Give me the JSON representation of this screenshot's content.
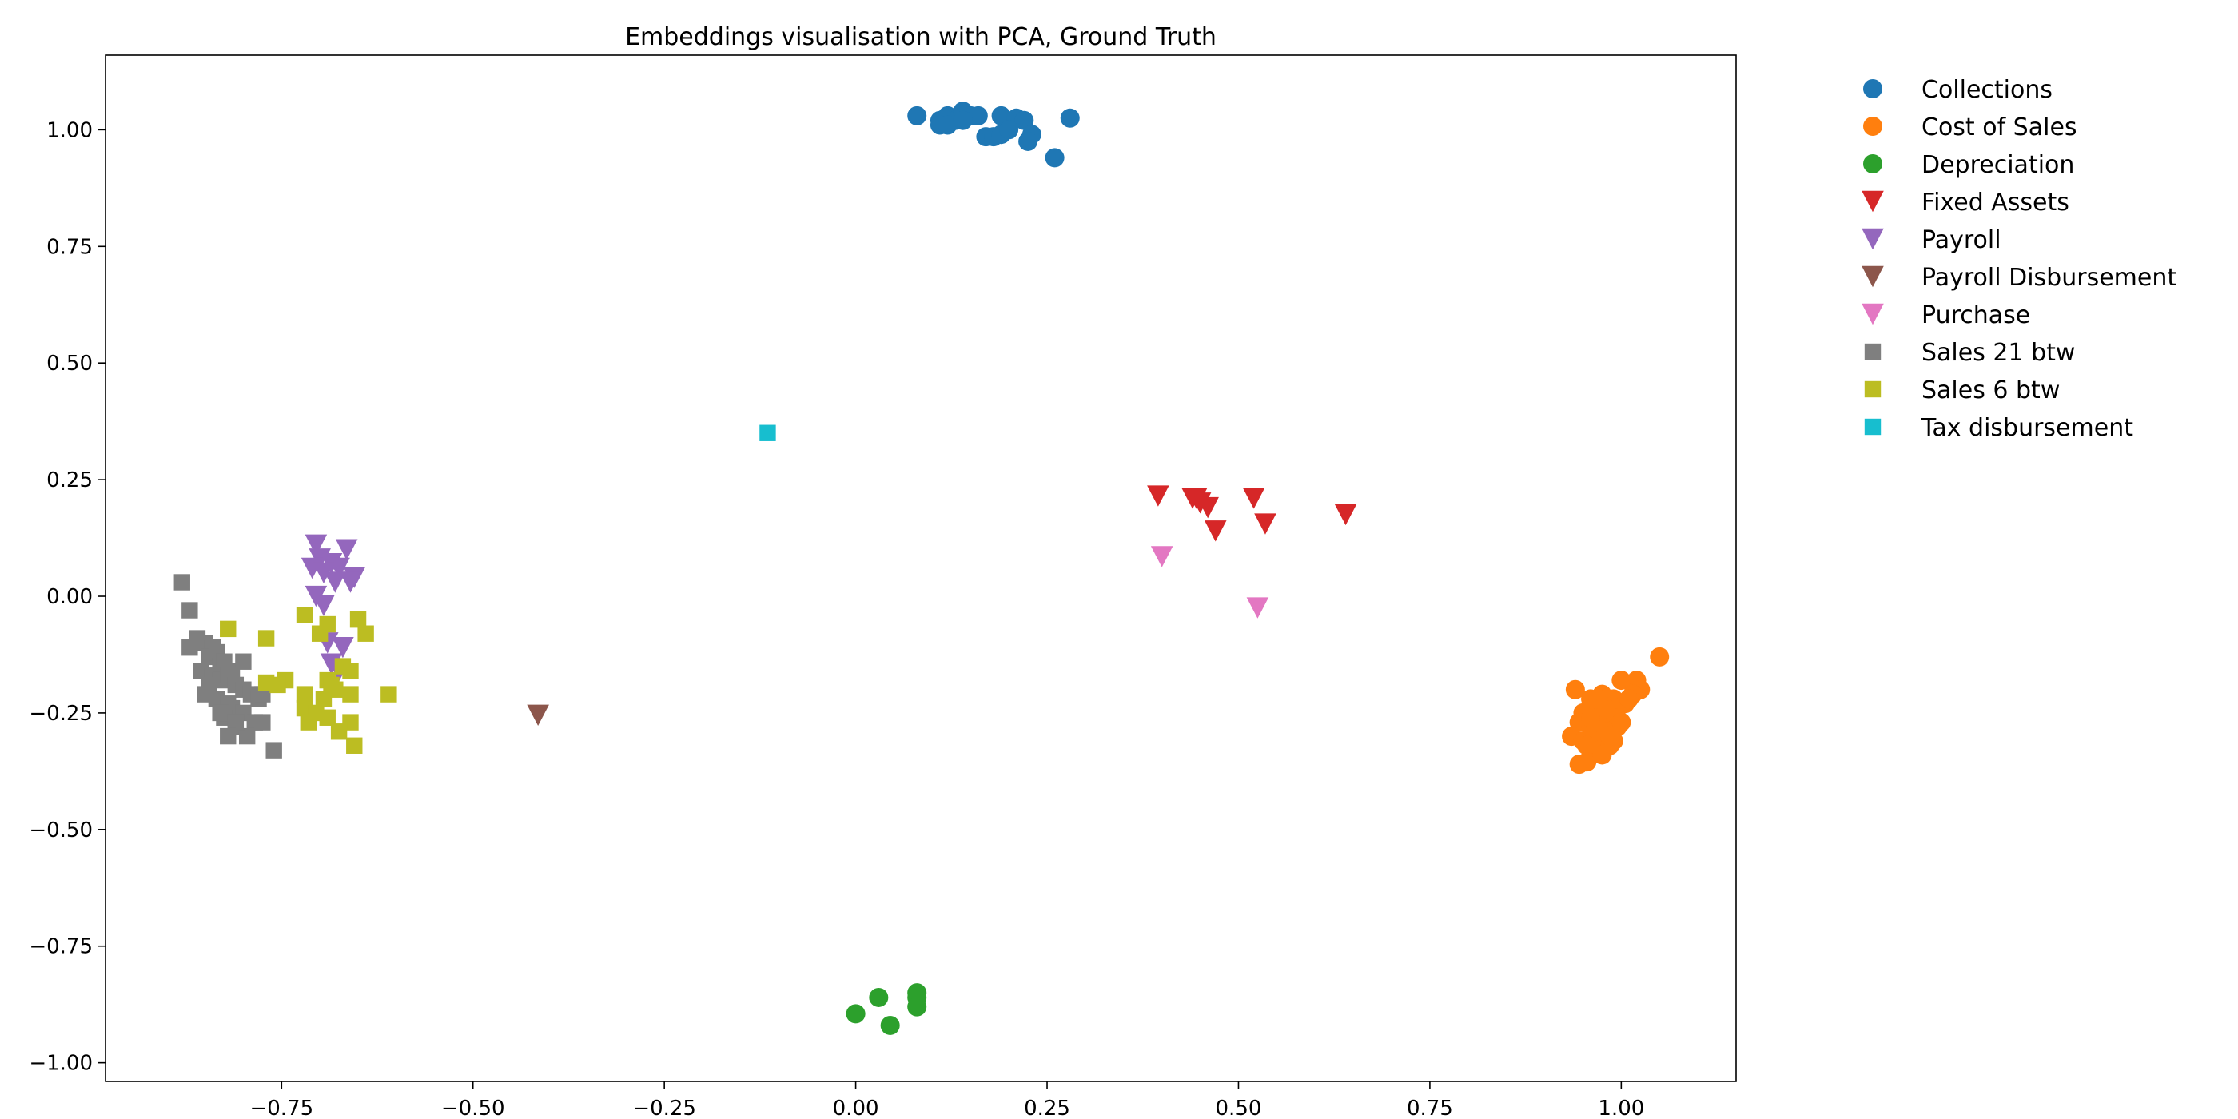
{
  "chart_data": {
    "type": "scatter",
    "title": "Embeddings visualisation with PCA, Ground Truth",
    "xlabel": "",
    "ylabel": "",
    "xlim": [
      -0.98,
      1.15
    ],
    "ylim": [
      -1.04,
      1.16
    ],
    "xticks": [
      -0.75,
      -0.5,
      -0.25,
      0.0,
      0.25,
      0.5,
      0.75,
      1.0
    ],
    "xtick_labels": [
      "−0.75",
      "−0.50",
      "−0.25",
      "0.00",
      "0.25",
      "0.50",
      "0.75",
      "1.00"
    ],
    "yticks": [
      1.0,
      0.75,
      0.5,
      0.25,
      0.0,
      -0.25,
      -0.5,
      -0.75,
      -1.0
    ],
    "ytick_labels": [
      "1.00",
      "0.75",
      "0.50",
      "0.25",
      "0.00",
      "−0.25",
      "−0.50",
      "−0.75",
      "−1.00"
    ],
    "grid": false,
    "legend_position": "outside-right",
    "series": [
      {
        "name": "Collections",
        "marker": "circle",
        "color": "#1f77b4",
        "x": [
          0.08,
          0.11,
          0.12,
          0.13,
          0.14,
          0.15,
          0.16,
          0.19,
          0.21,
          0.22,
          0.11,
          0.12,
          0.14,
          0.17,
          0.18,
          0.19,
          0.2,
          0.23,
          0.225,
          0.26,
          0.28
        ],
        "y": [
          1.03,
          1.02,
          1.03,
          1.02,
          1.04,
          1.03,
          1.03,
          1.03,
          1.025,
          1.02,
          1.01,
          1.01,
          1.02,
          0.985,
          0.985,
          0.99,
          1.0,
          0.99,
          0.975,
          0.94,
          1.025
        ]
      },
      {
        "name": "Cost of Sales",
        "marker": "circle",
        "color": "#ff7f0e",
        "x": [
          1.05,
          1.02,
          1.0,
          1.025,
          1.015,
          0.94,
          0.96,
          0.975,
          0.99,
          1.005,
          0.95,
          0.965,
          0.98,
          0.995,
          1.01,
          0.945,
          0.96,
          0.975,
          0.99,
          0.935,
          0.95,
          0.965,
          0.98,
          0.995,
          0.97,
          0.985,
          0.955,
          0.945,
          0.955,
          0.975,
          0.99,
          1.0,
          0.98,
          0.97,
          0.96,
          0.985
        ],
        "y": [
          -0.13,
          -0.18,
          -0.18,
          -0.2,
          -0.21,
          -0.2,
          -0.22,
          -0.21,
          -0.22,
          -0.23,
          -0.25,
          -0.24,
          -0.25,
          -0.24,
          -0.22,
          -0.27,
          -0.28,
          -0.27,
          -0.26,
          -0.3,
          -0.31,
          -0.3,
          -0.29,
          -0.28,
          -0.33,
          -0.32,
          -0.32,
          -0.36,
          -0.355,
          -0.34,
          -0.31,
          -0.27,
          -0.24,
          -0.22,
          -0.26,
          -0.3
        ]
      },
      {
        "name": "Depreciation",
        "marker": "circle",
        "color": "#2ca02c",
        "x": [
          0.08,
          0.08,
          0.03,
          0.0,
          0.045,
          0.08
        ],
        "y": [
          -0.85,
          -0.86,
          -0.86,
          -0.895,
          -0.92,
          -0.88
        ]
      },
      {
        "name": "Fixed Assets",
        "marker": "triangle-down",
        "color": "#d62728",
        "x": [
          0.395,
          0.44,
          0.45,
          0.46,
          0.47,
          0.52,
          0.535,
          0.64,
          0.445
        ],
        "y": [
          0.215,
          0.21,
          0.2,
          0.19,
          0.14,
          0.21,
          0.155,
          0.175,
          0.21
        ]
      },
      {
        "name": "Payroll",
        "marker": "triangle-down",
        "color": "#9467bd",
        "x": [
          -0.705,
          -0.665,
          -0.7,
          -0.71,
          -0.685,
          -0.675,
          -0.695,
          -0.655,
          -0.66,
          -0.68,
          -0.705,
          -0.695,
          -0.69,
          -0.67,
          -0.685,
          -0.675
        ],
        "y": [
          0.11,
          0.1,
          0.08,
          0.06,
          0.07,
          0.06,
          0.05,
          0.04,
          0.03,
          0.03,
          0.0,
          -0.02,
          -0.1,
          -0.11,
          -0.145,
          -0.16
        ]
      },
      {
        "name": "Payroll Disbursement",
        "marker": "triangle-down",
        "color": "#8c564b",
        "x": [
          -0.415
        ],
        "y": [
          -0.255
        ]
      },
      {
        "name": "Purchase",
        "marker": "triangle-down",
        "color": "#e377c2",
        "x": [
          0.4,
          0.525
        ],
        "y": [
          0.085,
          -0.025
        ]
      },
      {
        "name": "Sales 21 btw",
        "marker": "square",
        "color": "#7f7f7f",
        "x": [
          -0.88,
          -0.87,
          -0.87,
          -0.86,
          -0.85,
          -0.84,
          -0.845,
          -0.835,
          -0.83,
          -0.825,
          -0.815,
          -0.8,
          -0.855,
          -0.84,
          -0.83,
          -0.82,
          -0.81,
          -0.8,
          -0.79,
          -0.78,
          -0.85,
          -0.835,
          -0.82,
          -0.815,
          -0.8,
          -0.785,
          -0.775,
          -0.825,
          -0.81,
          -0.795,
          -0.775,
          -0.76,
          -0.845,
          -0.83,
          -0.81,
          -0.82
        ],
        "y": [
          0.03,
          -0.03,
          -0.11,
          -0.09,
          -0.1,
          -0.11,
          -0.13,
          -0.12,
          -0.15,
          -0.14,
          -0.16,
          -0.14,
          -0.16,
          -0.17,
          -0.18,
          -0.17,
          -0.19,
          -0.2,
          -0.21,
          -0.22,
          -0.21,
          -0.22,
          -0.23,
          -0.24,
          -0.25,
          -0.27,
          -0.21,
          -0.26,
          -0.28,
          -0.3,
          -0.27,
          -0.33,
          -0.19,
          -0.25,
          -0.27,
          -0.3
        ]
      },
      {
        "name": "Sales 6 btw",
        "marker": "square",
        "color": "#bcbd22",
        "x": [
          -0.82,
          -0.77,
          -0.72,
          -0.7,
          -0.69,
          -0.65,
          -0.64,
          -0.745,
          -0.755,
          -0.77,
          -0.72,
          -0.69,
          -0.67,
          -0.66,
          -0.61,
          -0.68,
          -0.695,
          -0.72,
          -0.66,
          -0.69,
          -0.705,
          -0.655,
          -0.675,
          -0.66,
          -0.715,
          -0.685
        ],
        "y": [
          -0.07,
          -0.09,
          -0.04,
          -0.08,
          -0.06,
          -0.05,
          -0.08,
          -0.18,
          -0.19,
          -0.185,
          -0.21,
          -0.18,
          -0.15,
          -0.16,
          -0.21,
          -0.2,
          -0.22,
          -0.24,
          -0.27,
          -0.26,
          -0.25,
          -0.32,
          -0.29,
          -0.21,
          -0.27,
          -0.19
        ]
      },
      {
        "name": "Tax disbursement",
        "marker": "square",
        "color": "#17becf",
        "x": [
          -0.115
        ],
        "y": [
          0.35
        ]
      }
    ]
  }
}
